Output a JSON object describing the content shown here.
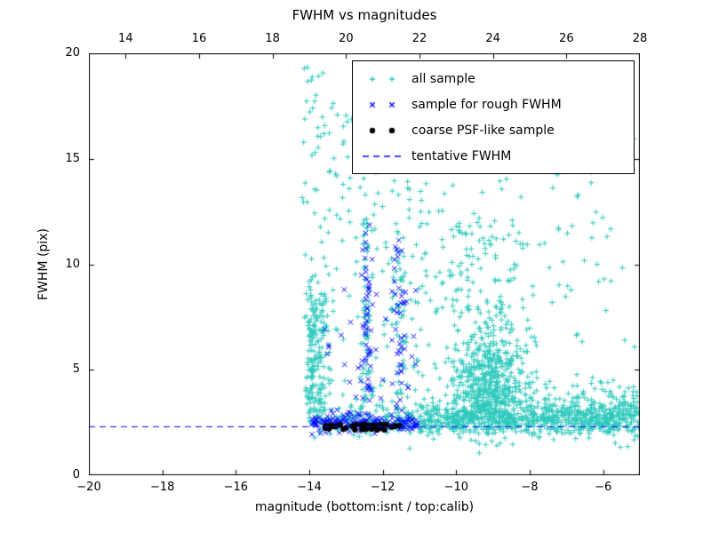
{
  "legend": {
    "items": [
      {
        "label": "all sample",
        "marker": "plus",
        "color": "#2fc9bd"
      },
      {
        "label": "sample for rough FWHM",
        "marker": "x",
        "color": "#0000ff"
      },
      {
        "label": "coarse PSF-like sample",
        "marker": "dot",
        "color": "#000000"
      },
      {
        "label": "tentative FWHM",
        "marker": "dashed-line",
        "color": "#0000ff"
      }
    ]
  },
  "chart_data": {
    "type": "scatter",
    "title": "FWHM vs magnitudes",
    "xlabel": "magnitude (bottom:isnt / top:calib)",
    "ylabel": "FWHM (pix)",
    "xlim": [
      -20,
      -5
    ],
    "top_xlim": [
      13,
      28
    ],
    "ylim": [
      0,
      20
    ],
    "x_ticks_bottom": [
      -20,
      -18,
      -16,
      -14,
      -12,
      -10,
      -8,
      -6
    ],
    "x_ticks_top": [
      14,
      16,
      18,
      20,
      22,
      24,
      26,
      28
    ],
    "y_ticks": [
      0,
      5,
      10,
      15,
      20
    ],
    "grid": false,
    "legend_position": "upper right",
    "reference_line": {
      "label": "tentative FWHM",
      "y": 2.3,
      "color": "#0000ff",
      "dash": [
        7,
        5
      ]
    },
    "series": [
      {
        "name": "all sample",
        "marker": "plus",
        "color": "#2fc9bd",
        "point_clusters": [
          {
            "count": 150,
            "x": {
              "dist": "uniform",
              "min": -14.05,
              "max": -11.0
            },
            "y": {
              "dist": "normal",
              "mean": 2.6,
              "sd": 0.35
            }
          },
          {
            "count": 620,
            "x": {
              "dist": "uniform",
              "min": -11.0,
              "max": -5.02
            },
            "y": {
              "dist": "normal",
              "mean": 2.7,
              "sd": 0.4
            }
          },
          {
            "count": 90,
            "x": {
              "dist": "normal",
              "mean": -13.95,
              "sd": 0.07
            },
            "y": {
              "dist": "uniform",
              "min": 2.9,
              "max": 9.5
            }
          },
          {
            "count": 80,
            "x": {
              "dist": "normal",
              "mean": -13.72,
              "sd": 0.1
            },
            "y": {
              "dist": "uniform",
              "min": 3.0,
              "max": 8.6
            }
          },
          {
            "count": 260,
            "x": {
              "dist": "uniform",
              "min": -14.2,
              "max": -10.7
            },
            "y": {
              "dist": "uniform",
              "min": 3.0,
              "max": 19.5
            }
          },
          {
            "count": 55,
            "x": {
              "dist": "normal",
              "mean": -12.45,
              "sd": 0.08
            },
            "y": {
              "dist": "uniform",
              "min": 3.0,
              "max": 12.2
            }
          },
          {
            "count": 45,
            "x": {
              "dist": "normal",
              "mean": -11.55,
              "sd": 0.09
            },
            "y": {
              "dist": "uniform",
              "min": 3.0,
              "max": 12.0
            }
          },
          {
            "count": 430,
            "x": {
              "dist": "normal",
              "mean": -9.1,
              "sd": 0.55
            },
            "y": {
              "dist": "normal",
              "mean": 3.9,
              "sd": 1.0
            }
          },
          {
            "count": 170,
            "x": {
              "dist": "normal",
              "mean": -9.0,
              "sd": 0.5
            },
            "y": {
              "dist": "normal",
              "mean": 6.0,
              "sd": 1.1
            }
          },
          {
            "count": 85,
            "x": {
              "dist": "normal",
              "mean": -9.3,
              "sd": 0.7
            },
            "y": {
              "dist": "uniform",
              "min": 7.5,
              "max": 12.0
            }
          },
          {
            "count": 120,
            "x": {
              "dist": "uniform",
              "min": -10.6,
              "max": -5.1
            },
            "y": {
              "dist": "uniform",
              "min": 6.0,
              "max": 19.0
            }
          },
          {
            "count": 180,
            "x": {
              "dist": "uniform",
              "min": -8.0,
              "max": -5.05
            },
            "y": {
              "dist": "normal",
              "mean": 3.1,
              "sd": 0.7
            }
          }
        ]
      },
      {
        "name": "sample for rough FWHM",
        "marker": "x",
        "color": "#0000ff",
        "point_clusters": [
          {
            "count": 160,
            "x": {
              "dist": "uniform",
              "min": -13.95,
              "max": -11.05
            },
            "y": {
              "dist": "normal",
              "mean": 2.5,
              "sd": 0.22
            }
          },
          {
            "count": 45,
            "x": {
              "dist": "normal",
              "mean": -12.42,
              "sd": 0.07
            },
            "y": {
              "dist": "uniform",
              "min": 2.9,
              "max": 12.0
            }
          },
          {
            "count": 35,
            "x": {
              "dist": "normal",
              "mean": -11.55,
              "sd": 0.09
            },
            "y": {
              "dist": "uniform",
              "min": 2.9,
              "max": 11.5
            }
          },
          {
            "count": 40,
            "x": {
              "dist": "uniform",
              "min": -13.6,
              "max": -11.1
            },
            "y": {
              "dist": "uniform",
              "min": 2.9,
              "max": 9.0
            }
          }
        ]
      },
      {
        "name": "coarse PSF-like sample",
        "marker": "dot",
        "color": "#000000",
        "point_clusters": [
          {
            "count": 42,
            "x": {
              "dist": "uniform",
              "min": -13.7,
              "max": -11.45
            },
            "y": {
              "dist": "normal",
              "mean": 2.3,
              "sd": 0.07
            }
          }
        ]
      }
    ]
  }
}
